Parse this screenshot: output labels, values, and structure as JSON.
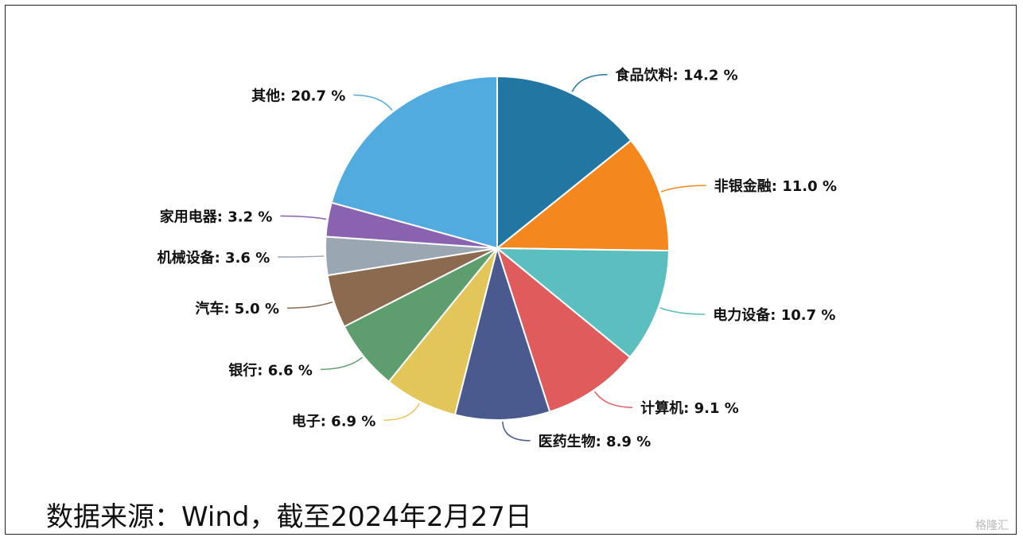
{
  "chart_data": {
    "type": "pie",
    "slices": [
      {
        "name": "食品饮料",
        "value": 14.2,
        "label": "食品饮料: 14.2 %",
        "color": "#2277a2"
      },
      {
        "name": "非银金融",
        "value": 11.0,
        "label": "非银金融: 11.0 %",
        "color": "#f5871f"
      },
      {
        "name": "电力设备",
        "value": 10.7,
        "label": "电力设备: 10.7 %",
        "color": "#5bbfbf"
      },
      {
        "name": "计算机",
        "value": 9.1,
        "label": "计算机: 9.1 %",
        "color": "#e05c5c"
      },
      {
        "name": "医药生物",
        "value": 8.9,
        "label": "医药生物: 8.9 %",
        "color": "#4a5a8e"
      },
      {
        "name": "电子",
        "value": 6.9,
        "label": "电子: 6.9 %",
        "color": "#e3c65a"
      },
      {
        "name": "银行",
        "value": 6.6,
        "label": "银行: 6.6 %",
        "color": "#5e9e6e"
      },
      {
        "name": "汽车",
        "value": 5.0,
        "label": "汽车: 5.0 %",
        "color": "#8b6a4f"
      },
      {
        "name": "机械设备",
        "value": 3.6,
        "label": "机械设备: 3.6 %",
        "color": "#9aa7b2"
      },
      {
        "name": "家用电器",
        "value": 3.2,
        "label": "家用电器: 3.2 %",
        "color": "#8a63b0"
      },
      {
        "name": "其他",
        "value": 20.7,
        "label": "其他: 20.7 %",
        "color": "#52abdf"
      }
    ]
  },
  "footer": {
    "source": "数据来源：Wind，截至2024年2月27日",
    "watermark": "格隆汇"
  }
}
